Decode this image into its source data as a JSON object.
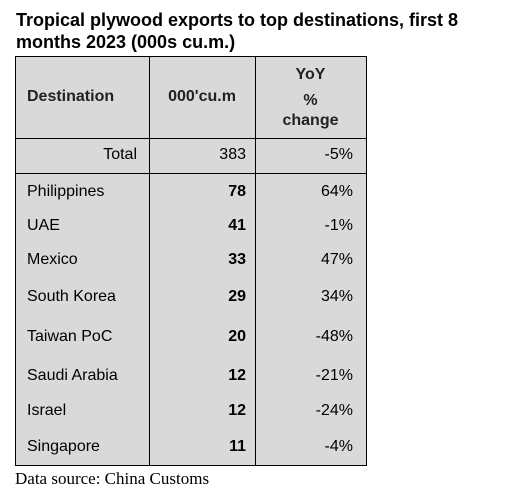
{
  "title": "Tropical plywood exports to top destinations, first 8 months 2023 (000s cu.m.)",
  "table": {
    "headers": {
      "destination": "Destination",
      "unit": "000'cu.m",
      "yoy_line1": "YoY",
      "yoy_line2": "%",
      "yoy_line3": "change"
    },
    "total": {
      "label": "Total",
      "value": "383",
      "yoy": "-5%"
    },
    "rows": [
      {
        "destination": "Philippines",
        "value": "78",
        "yoy": "64%"
      },
      {
        "destination": "UAE",
        "value": "41",
        "yoy": "-1%"
      },
      {
        "destination": "Mexico",
        "value": "33",
        "yoy": "47%"
      },
      {
        "destination": "South Korea",
        "value": "29",
        "yoy": "34%"
      },
      {
        "destination": "Taiwan PoC",
        "value": "20",
        "yoy": "-48%"
      },
      {
        "destination": "Saudi Arabia",
        "value": "12",
        "yoy": "-21%"
      },
      {
        "destination": "Israel",
        "value": "12",
        "yoy": "-24%"
      },
      {
        "destination": "Singapore",
        "value": "11",
        "yoy": "-4%"
      }
    ]
  },
  "source": "Data source: China Customs",
  "colors": {
    "table_background": "#d9d9d9",
    "border": "#000000",
    "text": "#000000"
  }
}
